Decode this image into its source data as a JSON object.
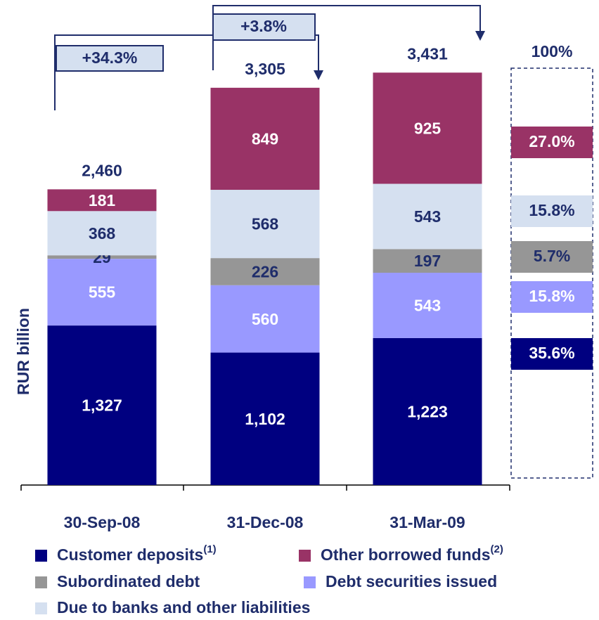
{
  "chart_data": {
    "type": "stacked_bar",
    "y_axis_label": "RUR billion",
    "categories": [
      "30-Sep-08",
      "31-Dec-08",
      "31-Mar-09"
    ],
    "ylim": [
      0,
      4000
    ],
    "series": [
      {
        "name": "Customer deposits",
        "note": "(1)",
        "color": "#000080",
        "values": [
          1327,
          1102,
          1223
        ],
        "value_labels": [
          "1,327",
          "1,102",
          "1,223"
        ]
      },
      {
        "name": "Debt securities issued",
        "color": "#9999ff",
        "values": [
          555,
          560,
          543
        ]
      },
      {
        "name": "Subordinated debt",
        "color": "#969696",
        "values": [
          29,
          226,
          197
        ]
      },
      {
        "name": "Due to banks and other liabilities",
        "color": "#d5e0f0",
        "values": [
          368,
          568,
          543
        ]
      },
      {
        "name": "Other borrowed funds",
        "note": "(2)",
        "color": "#993366",
        "values": [
          181,
          849,
          925
        ]
      }
    ],
    "totals": [
      2460,
      3305,
      3431
    ],
    "total_labels": [
      "2,460",
      "3,305",
      "3,431"
    ],
    "annotations": [
      "+34.3%",
      "+3.8%"
    ],
    "composition": {
      "title": "100%",
      "values": [
        35.6,
        15.8,
        5.7,
        15.8,
        27.0
      ],
      "value_labels": [
        "35.6%",
        "15.8%",
        "5.7%",
        "15.8%",
        "27.0%"
      ]
    }
  }
}
